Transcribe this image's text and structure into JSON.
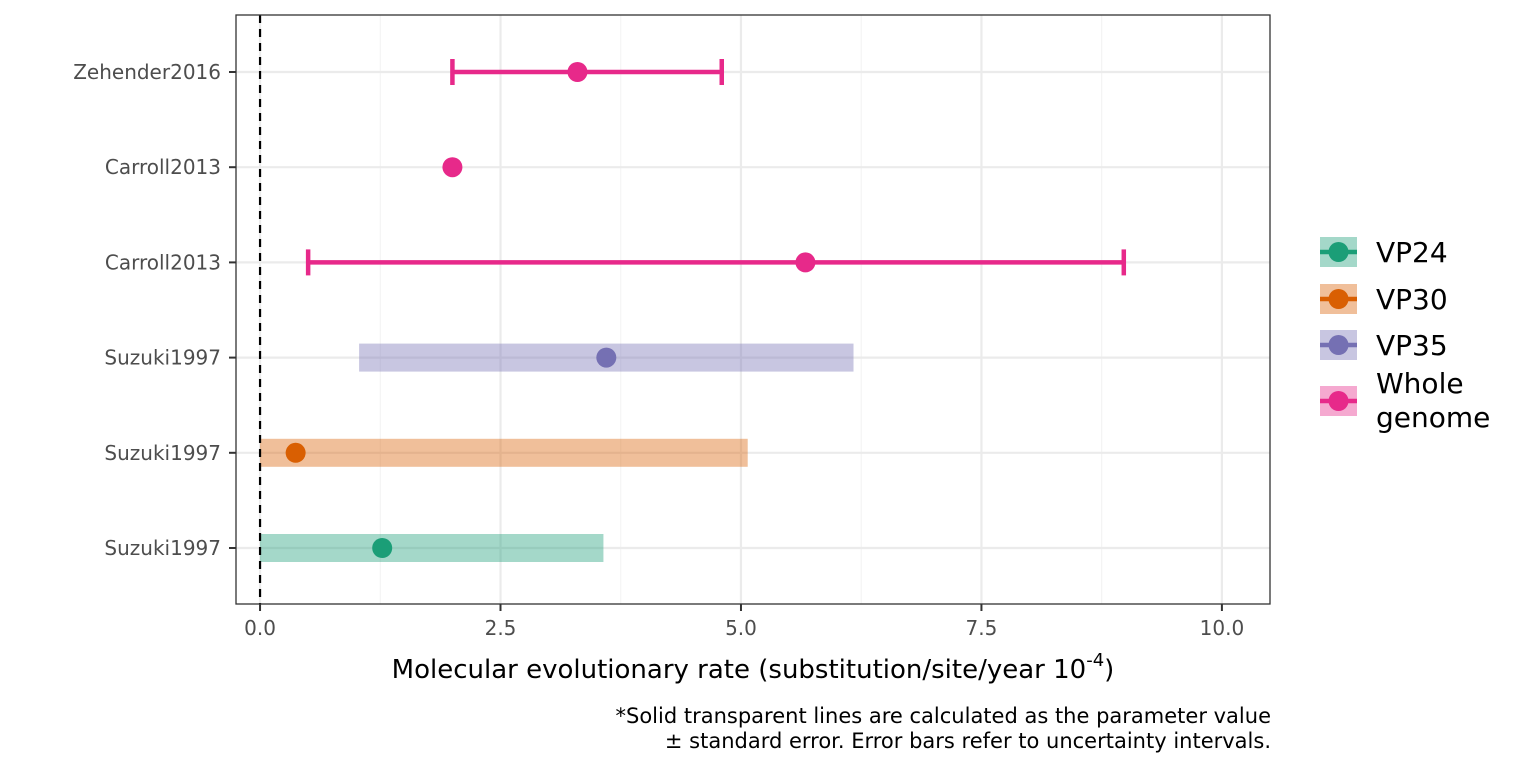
{
  "chart_data": {
    "type": "forest",
    "xlabel_main": "Molecular evolutionary rate (substitution/site/year 10",
    "xlabel_sup": "-4",
    "xlabel_end": ")",
    "xlim": [
      -0.25,
      10.5
    ],
    "x_ticks": [
      0.0,
      2.5,
      5.0,
      7.5,
      10.0
    ],
    "x_tick_labels": [
      "0.0",
      "2.5",
      "5.0",
      "7.5",
      "10.0"
    ],
    "reference_line_x": 0,
    "grid": true,
    "legend_position": "right",
    "categories": [
      "Zehender2016",
      "Carroll2013",
      "Carroll2013",
      "Suzuki1997",
      "Suzuki1997",
      "Suzuki1997"
    ],
    "rows": [
      {
        "label": "Zehender2016",
        "group": "Whole genome",
        "value": 3.3,
        "interval": [
          2.0,
          4.8
        ],
        "interval_type": "error_bar"
      },
      {
        "label": "Carroll2013",
        "group": "Whole genome",
        "value": 2.0,
        "interval": null,
        "interval_type": "none"
      },
      {
        "label": "Carroll2013",
        "group": "Whole genome",
        "value": 5.67,
        "interval": [
          0.5,
          8.98
        ],
        "interval_type": "error_bar"
      },
      {
        "label": "Suzuki1997",
        "group": "VP35",
        "value": 3.6,
        "interval": [
          1.03,
          6.17
        ],
        "interval_type": "standard_error"
      },
      {
        "label": "Suzuki1997",
        "group": "VP30",
        "value": 0.37,
        "interval": [
          0.0,
          5.07
        ],
        "interval_type": "standard_error"
      },
      {
        "label": "Suzuki1997",
        "group": "VP24",
        "value": 1.27,
        "interval": [
          0.0,
          3.57
        ],
        "interval_type": "standard_error"
      }
    ],
    "legend": [
      {
        "name": "VP24",
        "color": "#1b9e77"
      },
      {
        "name": "VP30",
        "color": "#d95f02"
      },
      {
        "name": "VP35",
        "color": "#7570b3"
      },
      {
        "name": "Whole genome",
        "color": "#e7298a",
        "label_lines": [
          "Whole",
          "genome"
        ]
      }
    ]
  },
  "caption": {
    "line1": "*Solid transparent lines are calculated as the parameter value",
    "line2": "± standard error. Error bars refer to uncertainty intervals."
  }
}
